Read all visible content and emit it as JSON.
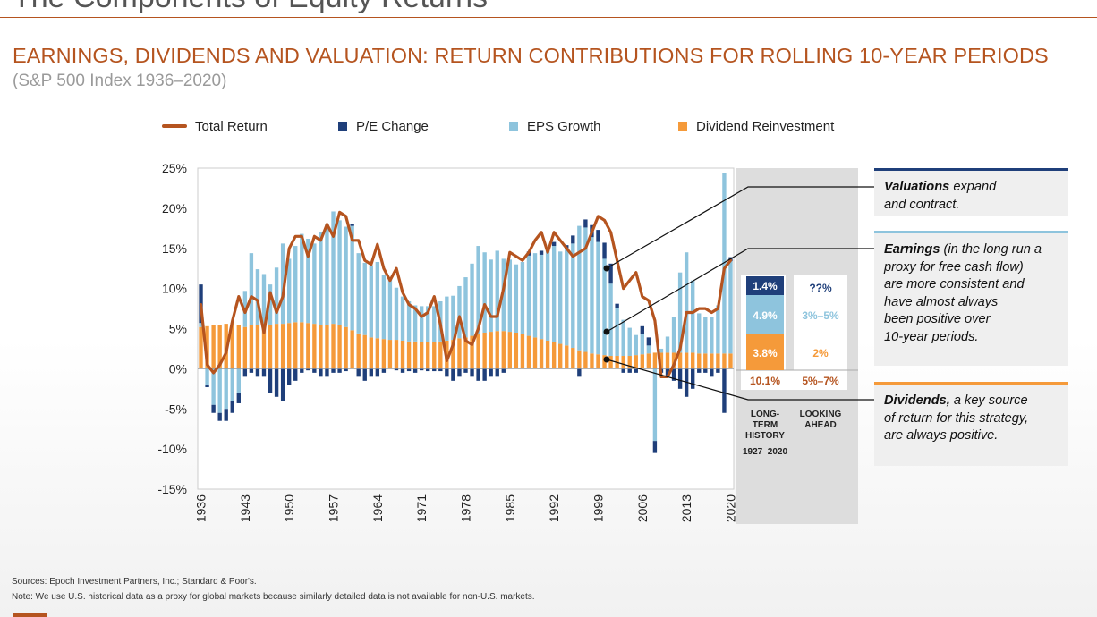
{
  "deck_title": "The Components of Equity Returns",
  "title": "EARNINGS, DIVIDENDS AND VALUATION: RETURN CONTRIBUTIONS FOR ROLLING 10-YEAR PERIODS",
  "subtitle": "(S&P 500 Index 1936–2020)",
  "colors": {
    "accent": "#b5541f",
    "pe": "#1f3f7a",
    "eps": "#8ec4dd",
    "div": "#f59a3a",
    "total": "#b5541f"
  },
  "legend": {
    "total": "Total Return",
    "pe": "P/E Change",
    "eps": "EPS Growth",
    "div": "Dividend Reinvestment"
  },
  "chart_data": {
    "type": "bar",
    "x_start": 1936,
    "x_end": 2020,
    "xticks": [
      "1936",
      "1943",
      "1950",
      "1957",
      "1964",
      "1971",
      "1978",
      "1985",
      "1992",
      "1999",
      "2006",
      "2013",
      "2020"
    ],
    "yticks": [
      "25%",
      "20%",
      "15%",
      "10%",
      "5%",
      "0%",
      "-5%",
      "-10%",
      "-15%"
    ],
    "ylim": [
      -15,
      25
    ],
    "series": [
      {
        "name": "Dividend Reinvestment",
        "kind": "bar",
        "values": [
          5.2,
          5.3,
          5.4,
          5.5,
          5.6,
          5.7,
          5.4,
          5.2,
          5.4,
          5.4,
          5.3,
          5.5,
          5.6,
          5.6,
          5.7,
          5.8,
          5.8,
          5.7,
          5.6,
          5.5,
          5.5,
          5.6,
          5.5,
          5.2,
          4.8,
          4.4,
          4.2,
          3.9,
          3.8,
          3.7,
          3.6,
          3.6,
          3.5,
          3.4,
          3.4,
          3.3,
          3.3,
          3.3,
          3.4,
          3.5,
          3.6,
          3.8,
          3.9,
          4.1,
          4.3,
          4.5,
          4.6,
          4.7,
          4.7,
          4.6,
          4.5,
          4.3,
          4.1,
          3.9,
          3.7,
          3.5,
          3.3,
          3.1,
          2.9,
          2.6,
          2.3,
          2.1,
          1.9,
          1.8,
          1.7,
          1.6,
          1.6,
          1.6,
          1.6,
          1.7,
          1.8,
          1.9,
          2.0,
          2.0,
          2.0,
          2.0,
          2.0,
          2.0,
          2.0,
          1.9,
          1.9,
          1.9,
          1.9,
          1.9,
          1.9
        ]
      },
      {
        "name": "EPS Growth",
        "kind": "bar",
        "values": [
          0.5,
          -2.0,
          -4.5,
          -5.5,
          -5.0,
          -4.0,
          -3.0,
          4.5,
          9.0,
          7.0,
          6.5,
          5.0,
          7.0,
          10.0,
          8.0,
          9.5,
          11.0,
          10.5,
          10.0,
          11.5,
          12.5,
          14.0,
          13.0,
          12.5,
          13.0,
          10.0,
          9.0,
          9.0,
          9.5,
          8.0,
          7.5,
          6.5,
          5.5,
          5.0,
          4.5,
          4.5,
          4.5,
          4.5,
          5.0,
          5.5,
          5.5,
          6.5,
          7.5,
          9.0,
          11.0,
          10.0,
          9.0,
          10.0,
          9.0,
          9.0,
          8.5,
          9.0,
          10.0,
          10.5,
          10.5,
          11.5,
          12.0,
          11.5,
          12.0,
          13.0,
          15.5,
          15.5,
          14.5,
          14.0,
          12.0,
          9.0,
          6.0,
          4.5,
          3.5,
          2.5,
          2.5,
          1.0,
          -9.0,
          0.5,
          2.0,
          4.5,
          10.0,
          12.5,
          9.0,
          5.0,
          4.5,
          4.5,
          6.0,
          22.5,
          11.5
        ]
      },
      {
        "name": "P/E Change",
        "kind": "bar",
        "values": [
          4.8,
          -0.3,
          -1.0,
          -1.0,
          -1.5,
          -1.5,
          -1.3,
          -1.0,
          -0.5,
          -1.0,
          -1.0,
          -3.0,
          -3.5,
          -4.0,
          -2.0,
          -1.5,
          -0.5,
          -0.2,
          -0.5,
          -1.0,
          -1.0,
          -0.5,
          -0.5,
          -0.3,
          0.2,
          -1.0,
          -1.5,
          -1.0,
          -1.0,
          -0.5,
          0.0,
          -0.2,
          -0.5,
          -0.3,
          -0.5,
          -0.2,
          -0.3,
          -0.3,
          -0.3,
          -1.0,
          -1.5,
          -1.0,
          -0.5,
          -1.0,
          -1.5,
          -1.5,
          -1.0,
          -1.0,
          -0.5,
          0.0,
          0.0,
          0.0,
          0.5,
          0.0,
          0.5,
          0.0,
          0.5,
          0.0,
          0.5,
          1.0,
          -1.0,
          1.0,
          1.5,
          1.5,
          2.0,
          2.5,
          0.5,
          -0.5,
          -0.5,
          -0.5,
          1.0,
          1.0,
          -1.5,
          -0.5,
          -1.0,
          -1.5,
          -2.5,
          -3.5,
          -2.5,
          -0.5,
          -0.5,
          -1.0,
          -0.5,
          -5.5,
          0.5
        ]
      },
      {
        "name": "Total Return",
        "kind": "line",
        "values": [
          8,
          0.5,
          -0.5,
          0.5,
          2,
          6,
          9,
          7,
          9,
          8.5,
          4.5,
          9.5,
          7,
          9,
          15,
          16.5,
          16.5,
          14,
          16.5,
          16,
          18,
          16.5,
          19.5,
          19,
          16,
          16,
          13.5,
          13,
          15.5,
          12.5,
          11,
          12.5,
          9.5,
          8,
          7.5,
          6.5,
          7,
          9,
          5.5,
          1,
          3,
          6.5,
          3.5,
          3,
          5,
          8,
          6.5,
          6.5,
          10,
          14.5,
          14,
          13.5,
          14.5,
          16,
          17,
          14.5,
          17,
          16,
          15,
          14,
          14.5,
          15,
          17,
          19,
          18.5,
          17,
          13.5,
          10,
          11,
          12,
          9,
          8.5,
          6,
          -1,
          -1,
          0.5,
          2.5,
          7,
          7,
          7.5,
          7.5,
          7,
          7.5,
          12.5,
          13.5
        ]
      }
    ],
    "summary": {
      "long_term": {
        "pe": "1.4%",
        "eps": "4.9%",
        "div": "3.8%",
        "total": "10.1%",
        "label": [
          "LONG-",
          "TERM",
          "HISTORY"
        ],
        "period": "1927–2020"
      },
      "looking_ahead": {
        "pe": "??%",
        "eps": "3%–5%",
        "div": "2%",
        "total": "5%–7%",
        "label": [
          "LOOKING",
          "AHEAD"
        ]
      }
    }
  },
  "callouts": {
    "valuations": {
      "bold": "Valuations",
      "rest1": " expand",
      "rest2": "and contract."
    },
    "earnings": {
      "bold": "Earnings",
      "rest1": " (in the long run a",
      "lines": [
        "proxy for free cash flow)",
        "are more consistent and",
        "have almost always",
        "been positive over",
        "10-year periods."
      ]
    },
    "dividends": {
      "bold": "Dividends,",
      "rest1": " a key source",
      "lines": [
        "of return for this strategy,",
        "are always positive."
      ]
    }
  },
  "footer": {
    "sources": "Sources: Epoch Investment Partners, Inc.; Standard & Poor's.",
    "note": "Note: We use U.S. historical data as a proxy for global markets because similarly detailed data is not available for non-U.S. markets."
  }
}
